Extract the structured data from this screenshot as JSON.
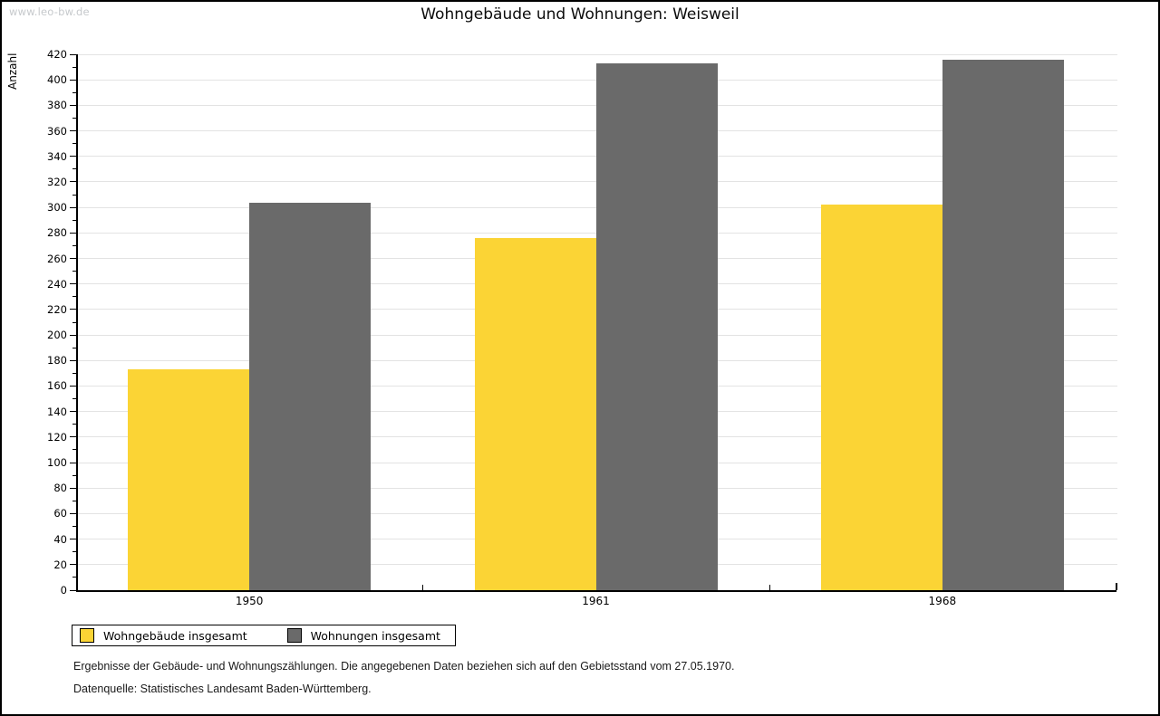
{
  "page": {
    "watermark": "www.leo-bw.de",
    "title": "Wohngebäude und Wohnungen: Weisweil",
    "footnote_line1": "Ergebnisse der Gebäude- und Wohnungszählungen. Die angegebenen Daten beziehen sich auf den Gebietsstand vom 27.05.1970.",
    "footnote_line2": "Datenquelle: Statistisches Landesamt Baden-Württemberg."
  },
  "chart_data": {
    "type": "bar",
    "title": "Wohngebäude und Wohnungen: Weisweil",
    "ylabel": "Anzahl",
    "categories": [
      "1950",
      "1961",
      "1968"
    ],
    "series": [
      {
        "name": "Wohngebäude insgesamt",
        "color": "#fbd435",
        "values": [
          173,
          276,
          302
        ]
      },
      {
        "name": "Wohnungen insgesamt",
        "color": "#6a6a6a",
        "values": [
          304,
          413,
          416
        ]
      }
    ],
    "ylim": [
      0,
      420
    ],
    "y_major_step": 20,
    "y_minor_step": 10,
    "grid": true,
    "gridline_color": "#e3e3e3",
    "legend_position": "bottom-left"
  }
}
